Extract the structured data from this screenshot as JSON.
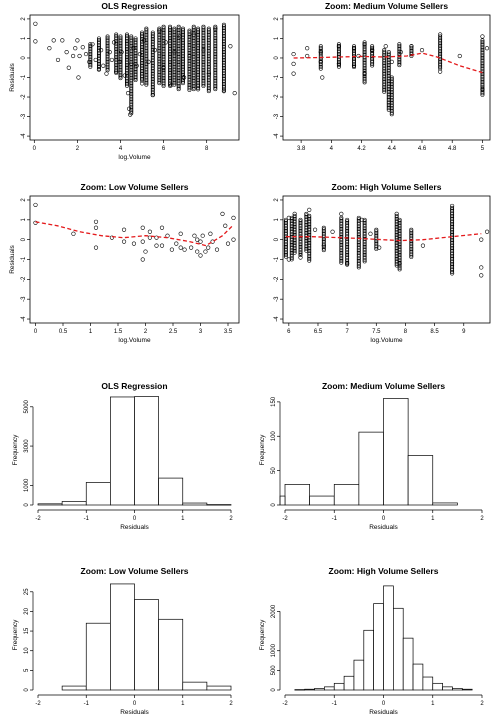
{
  "chart_data": [
    {
      "type": "scatter",
      "title": "OLS Regression",
      "xlabel": "log.Volume",
      "ylabel": "Residuals",
      "xlim": [
        -0.2,
        9.5
      ],
      "ylim": [
        -4.2,
        2.2
      ],
      "xticks": [
        0,
        2,
        4,
        6,
        8
      ],
      "yticks": [
        -4,
        -3,
        -2,
        -1,
        0,
        1,
        2
      ],
      "smooth": false,
      "grid": false,
      "points": [
        [
          0.05,
          1.75
        ],
        [
          0.05,
          0.85
        ],
        [
          0.7,
          0.5
        ],
        [
          0.9,
          0.9
        ],
        [
          1.1,
          -0.1
        ],
        [
          1.3,
          0.9
        ],
        [
          1.5,
          0.3
        ],
        [
          1.6,
          -0.5
        ],
        [
          1.8,
          0.1
        ],
        [
          1.9,
          0.5
        ],
        [
          2.0,
          0.9
        ],
        [
          2.05,
          -1.0
        ],
        [
          2.1,
          0.1
        ],
        [
          2.25,
          0.55
        ],
        [
          2.4,
          0.2
        ],
        [
          2.55,
          -0.2
        ],
        [
          2.7,
          0.7
        ],
        [
          2.85,
          -0.1
        ],
        [
          3.0,
          -0.6
        ],
        [
          3.1,
          0.4
        ],
        [
          3.2,
          -0.4
        ],
        [
          3.35,
          -0.8
        ],
        [
          3.5,
          0.3
        ],
        [
          3.6,
          -0.1
        ],
        [
          3.7,
          0.8
        ],
        [
          3.8,
          -0.7
        ],
        [
          3.95,
          -0.2
        ],
        [
          4.05,
          0.3
        ],
        [
          4.2,
          -0.9
        ],
        [
          4.35,
          -1.8
        ],
        [
          4.4,
          -2.6
        ],
        [
          4.45,
          -2.9
        ],
        [
          4.5,
          -0.3
        ],
        [
          4.6,
          0.5
        ],
        [
          4.75,
          -0.4
        ],
        [
          4.9,
          0.2
        ],
        [
          5.0,
          -1.3
        ],
        [
          5.1,
          0.9
        ],
        [
          5.3,
          -0.2
        ],
        [
          5.5,
          -1.9
        ],
        [
          5.6,
          0.4
        ],
        [
          5.8,
          1.4
        ],
        [
          6.0,
          -0.5
        ],
        [
          6.1,
          0.8
        ],
        [
          6.35,
          -1.4
        ],
        [
          6.5,
          0.3
        ],
        [
          6.75,
          1.1
        ],
        [
          6.95,
          -1.0
        ],
        [
          7.2,
          0.1
        ],
        [
          7.4,
          1.2
        ],
        [
          7.6,
          -1.6
        ],
        [
          7.85,
          0.4
        ],
        [
          8.1,
          -0.8
        ],
        [
          8.4,
          1.5
        ],
        [
          8.8,
          -1.7
        ],
        [
          9.1,
          0.6
        ],
        [
          9.3,
          -1.8
        ]
      ],
      "dense_x": [
        2.6,
        3.0,
        3.4,
        3.8,
        4.0,
        4.3,
        4.5,
        4.7,
        5.0,
        5.2,
        5.5,
        5.8,
        6.0,
        6.3,
        6.5,
        6.7,
        6.9,
        7.2,
        7.4,
        7.6,
        7.85,
        8.1,
        8.4,
        8.8
      ],
      "dense_range": [
        [
          -0.5,
          0.7
        ],
        [
          -0.6,
          1.0
        ],
        [
          -0.7,
          1.1
        ],
        [
          -0.8,
          1.2
        ],
        [
          -1.1,
          1.1
        ],
        [
          -1.5,
          1.2
        ],
        [
          -2.9,
          1.1
        ],
        [
          -1.2,
          1.0
        ],
        [
          -1.2,
          1.3
        ],
        [
          -1.4,
          1.5
        ],
        [
          -1.9,
          1.3
        ],
        [
          -1.3,
          1.5
        ],
        [
          -1.5,
          1.6
        ],
        [
          -1.5,
          1.6
        ],
        [
          -1.4,
          1.5
        ],
        [
          -1.6,
          1.6
        ],
        [
          -1.3,
          1.5
        ],
        [
          -1.7,
          1.4
        ],
        [
          -1.6,
          1.6
        ],
        [
          -1.6,
          1.5
        ],
        [
          -1.5,
          1.6
        ],
        [
          -1.7,
          1.5
        ],
        [
          -1.6,
          1.6
        ],
        [
          -1.7,
          1.7
        ]
      ]
    },
    {
      "type": "scatter",
      "title": "Zoom: Medium Volume Sellers",
      "xlabel": "",
      "ylabel": "",
      "xlim": [
        3.68,
        5.05
      ],
      "ylim": [
        -4.2,
        2.2
      ],
      "xticks": [
        3.8,
        4.0,
        4.2,
        4.4,
        4.6,
        4.8,
        5.0
      ],
      "yticks": [
        -4,
        -3,
        -2,
        -1,
        0,
        1,
        2
      ],
      "smooth": true,
      "grid": false,
      "smooth_line": [
        [
          3.75,
          0.0
        ],
        [
          3.9,
          0.02
        ],
        [
          4.05,
          0.05
        ],
        [
          4.2,
          0.08
        ],
        [
          4.35,
          0.05
        ],
        [
          4.5,
          0.1
        ],
        [
          4.6,
          0.25
        ],
        [
          4.7,
          0.05
        ],
        [
          4.85,
          -0.4
        ],
        [
          5.0,
          -0.75
        ]
      ],
      "points": [
        [
          3.75,
          0.2
        ],
        [
          3.75,
          -0.3
        ],
        [
          3.75,
          -0.8
        ],
        [
          3.84,
          0.5
        ],
        [
          3.84,
          0.1
        ],
        [
          3.93,
          -0.2
        ],
        [
          3.93,
          0.3
        ],
        [
          3.94,
          -1.0
        ],
        [
          4.05,
          0.6
        ],
        [
          4.05,
          -0.3
        ],
        [
          4.15,
          0.5
        ],
        [
          4.15,
          -0.4
        ],
        [
          4.18,
          0.1
        ],
        [
          4.22,
          -0.8
        ],
        [
          4.22,
          0.7
        ],
        [
          4.27,
          0.4
        ],
        [
          4.36,
          0.6
        ],
        [
          4.4,
          -0.2
        ],
        [
          4.46,
          0.3
        ],
        [
          4.53,
          0.6
        ],
        [
          4.6,
          0.4
        ],
        [
          4.72,
          1.2
        ],
        [
          4.72,
          -0.7
        ],
        [
          4.85,
          0.1
        ],
        [
          5.0,
          1.1
        ],
        [
          5.0,
          -1.6
        ],
        [
          5.03,
          0.5
        ]
      ],
      "dense_x": [
        3.93,
        4.05,
        4.15,
        4.22,
        4.27,
        4.35,
        4.38,
        4.4,
        4.45,
        4.53,
        4.72,
        5.0
      ],
      "dense_range": [
        [
          -0.6,
          0.6
        ],
        [
          -0.5,
          0.7
        ],
        [
          -0.5,
          0.6
        ],
        [
          -1.3,
          0.8
        ],
        [
          -0.4,
          0.6
        ],
        [
          -1.8,
          0.4
        ],
        [
          -2.7,
          0.3
        ],
        [
          -2.9,
          -1.0
        ],
        [
          -0.4,
          0.7
        ],
        [
          0.1,
          0.6
        ],
        [
          -0.6,
          1.1
        ],
        [
          -1.9,
          0.9
        ]
      ]
    },
    {
      "type": "scatter",
      "title": "Zoom: Low Volume Sellers",
      "xlabel": "log.Volume",
      "ylabel": "Residuals",
      "xlim": [
        -0.1,
        3.7
      ],
      "ylim": [
        -4.2,
        2.2
      ],
      "xticks": [
        0.0,
        0.5,
        1.0,
        1.5,
        2.0,
        2.5,
        3.0,
        3.5
      ],
      "yticks": [
        -4,
        -3,
        -2,
        -1,
        0,
        1,
        2
      ],
      "smooth": true,
      "grid": false,
      "smooth_line": [
        [
          0.0,
          0.9
        ],
        [
          0.4,
          0.7
        ],
        [
          0.8,
          0.4
        ],
        [
          1.2,
          0.2
        ],
        [
          1.6,
          0.1
        ],
        [
          2.0,
          0.2
        ],
        [
          2.4,
          0.1
        ],
        [
          2.8,
          -0.1
        ],
        [
          3.1,
          -0.3
        ],
        [
          3.4,
          0.2
        ],
        [
          3.6,
          0.75
        ]
      ],
      "points": [
        [
          0.0,
          1.75
        ],
        [
          0.0,
          0.85
        ],
        [
          0.69,
          0.3
        ],
        [
          1.1,
          0.6
        ],
        [
          1.1,
          0.9
        ],
        [
          1.1,
          -0.4
        ],
        [
          1.39,
          0.1
        ],
        [
          1.61,
          -0.1
        ],
        [
          1.61,
          0.5
        ],
        [
          1.79,
          -0.2
        ],
        [
          1.95,
          0.6
        ],
        [
          1.95,
          -0.1
        ],
        [
          1.95,
          -1.0
        ],
        [
          2.0,
          -0.6
        ],
        [
          2.08,
          0.4
        ],
        [
          2.08,
          0.1
        ],
        [
          2.2,
          0.1
        ],
        [
          2.2,
          -0.3
        ],
        [
          2.3,
          0.6
        ],
        [
          2.3,
          -0.3
        ],
        [
          2.4,
          0.2
        ],
        [
          2.48,
          -0.5
        ],
        [
          2.56,
          -0.2
        ],
        [
          2.64,
          -0.4
        ],
        [
          2.64,
          0.3
        ],
        [
          2.71,
          -0.5
        ],
        [
          2.83,
          -0.4
        ],
        [
          2.89,
          0.2
        ],
        [
          2.94,
          -0.6
        ],
        [
          2.94,
          0.0
        ],
        [
          3.0,
          -0.1
        ],
        [
          3.0,
          -0.8
        ],
        [
          3.04,
          0.2
        ],
        [
          3.09,
          -0.6
        ],
        [
          3.14,
          -0.4
        ],
        [
          3.18,
          0.3
        ],
        [
          3.22,
          -0.1
        ],
        [
          3.3,
          -0.5
        ],
        [
          3.4,
          1.3
        ],
        [
          3.45,
          0.7
        ],
        [
          3.5,
          -0.2
        ],
        [
          3.6,
          1.1
        ],
        [
          3.6,
          0.0
        ]
      ],
      "dense_x": [],
      "dense_range": []
    },
    {
      "type": "scatter",
      "title": "Zoom: High Volume Sellers",
      "xlabel": "log.Volume",
      "ylabel": "",
      "xlim": [
        5.9,
        9.45
      ],
      "ylim": [
        -4.2,
        2.2
      ],
      "xticks": [
        6.0,
        6.5,
        7.0,
        7.5,
        8.0,
        8.5,
        9.0
      ],
      "yticks": [
        -4,
        -3,
        -2,
        -1,
        0,
        1,
        2
      ],
      "smooth": true,
      "grid": false,
      "smooth_line": [
        [
          5.95,
          0.15
        ],
        [
          6.4,
          0.15
        ],
        [
          6.9,
          0.1
        ],
        [
          7.3,
          0.05
        ],
        [
          7.9,
          -0.05
        ],
        [
          8.3,
          0.0
        ],
        [
          8.8,
          0.15
        ],
        [
          9.3,
          0.3
        ]
      ],
      "points": [
        [
          6.0,
          1.1
        ],
        [
          6.0,
          -1.0
        ],
        [
          6.1,
          1.3
        ],
        [
          6.2,
          -0.9
        ],
        [
          6.35,
          1.5
        ],
        [
          6.45,
          0.5
        ],
        [
          6.6,
          -0.3
        ],
        [
          6.75,
          0.4
        ],
        [
          6.9,
          1.3
        ],
        [
          7.0,
          -1.2
        ],
        [
          7.25,
          1.0
        ],
        [
          7.4,
          0.3
        ],
        [
          7.55,
          -0.4
        ],
        [
          7.85,
          1.3
        ],
        [
          7.9,
          -1.2
        ],
        [
          8.3,
          -0.3
        ],
        [
          8.8,
          1.7
        ],
        [
          8.8,
          -1.7
        ],
        [
          9.3,
          -1.8
        ],
        [
          9.3,
          -1.4
        ],
        [
          9.3,
          0.0
        ],
        [
          9.4,
          0.4
        ]
      ],
      "dense_x": [
        5.95,
        6.05,
        6.1,
        6.2,
        6.3,
        6.35,
        6.6,
        6.9,
        7.0,
        7.2,
        7.3,
        7.5,
        7.85,
        7.9,
        8.1,
        8.8
      ],
      "dense_range": [
        [
          -0.9,
          1.0
        ],
        [
          -1.0,
          1.1
        ],
        [
          -0.7,
          1.2
        ],
        [
          -0.8,
          1.0
        ],
        [
          -0.6,
          1.3
        ],
        [
          -1.1,
          1.2
        ],
        [
          -0.6,
          0.6
        ],
        [
          -1.2,
          1.1
        ],
        [
          -1.3,
          1.0
        ],
        [
          -1.4,
          1.1
        ],
        [
          -1.1,
          1.0
        ],
        [
          -0.5,
          0.5
        ],
        [
          -1.3,
          1.2
        ],
        [
          -1.5,
          1.0
        ],
        [
          -0.9,
          0.5
        ],
        [
          -1.7,
          1.6
        ]
      ]
    },
    {
      "type": "bar",
      "title": "OLS Regression",
      "xlabel": "Residuals",
      "ylabel": "Frequency",
      "xlim": [
        -2,
        2
      ],
      "ylim": [
        0,
        5600
      ],
      "xticks": [
        -2,
        -1,
        0,
        1,
        2
      ],
      "yticks": [
        0,
        1000,
        3000,
        5000
      ],
      "bins": [
        -2.0,
        -1.5,
        -1.0,
        -0.5,
        0.0,
        0.5,
        1.0,
        1.5,
        2.0
      ],
      "counts": [
        60,
        180,
        1150,
        5500,
        5520,
        1370,
        100,
        20
      ],
      "grid": false
    },
    {
      "type": "bar",
      "title": "Zoom: Medium Volume Sellers",
      "xlabel": "Residuals",
      "ylabel": "Frequency",
      "xlim": [
        -2,
        2
      ],
      "ylim": [
        0,
        160
      ],
      "xticks": [
        -2,
        -1,
        0,
        1,
        2
      ],
      "yticks": [
        0,
        50,
        100,
        150
      ],
      "bins": [
        -2.0,
        -1.5,
        -1.0,
        -0.5,
        0.0,
        0.5,
        1.0
      ],
      "counts": [
        30,
        13,
        30,
        106,
        155,
        72
      ],
      "extra_bars": [
        [
          -2.1,
          -2.0,
          13
        ],
        [
          1.0,
          1.5,
          3
        ]
      ],
      "grid": false
    },
    {
      "type": "bar",
      "title": "Zoom: Low Volume Sellers",
      "xlabel": "Residuals",
      "ylabel": "Frequency",
      "xlim": [
        -2,
        2
      ],
      "ylim": [
        0,
        28
      ],
      "xticks": [
        -2,
        -1,
        0,
        1,
        2
      ],
      "yticks": [
        0,
        5,
        10,
        15,
        20,
        25
      ],
      "bins": [
        -1.5,
        -1.0,
        -0.5,
        0.0,
        0.5,
        1.0,
        1.5,
        2.0
      ],
      "counts": [
        1,
        17,
        27,
        23,
        18,
        2,
        1
      ],
      "grid": false
    },
    {
      "type": "bar",
      "title": "Zoom: High Volume Sellers",
      "xlabel": "Residuals",
      "ylabel": "Frequency",
      "xlim": [
        -2,
        2
      ],
      "ylim": [
        0,
        2800
      ],
      "xticks": [
        -2,
        -1,
        0,
        1,
        2
      ],
      "yticks": [
        0,
        500,
        1000,
        2000
      ],
      "bins": [
        -1.8,
        -1.6,
        -1.4,
        -1.2,
        -1.0,
        -0.8,
        -0.6,
        -0.4,
        -0.2,
        0.0,
        0.2,
        0.4,
        0.6,
        0.8,
        1.0,
        1.2,
        1.4,
        1.6,
        1.8
      ],
      "counts": [
        10,
        20,
        40,
        80,
        170,
        350,
        760,
        1520,
        2200,
        2650,
        2080,
        1320,
        660,
        330,
        170,
        80,
        40,
        20
      ],
      "grid": false
    }
  ]
}
